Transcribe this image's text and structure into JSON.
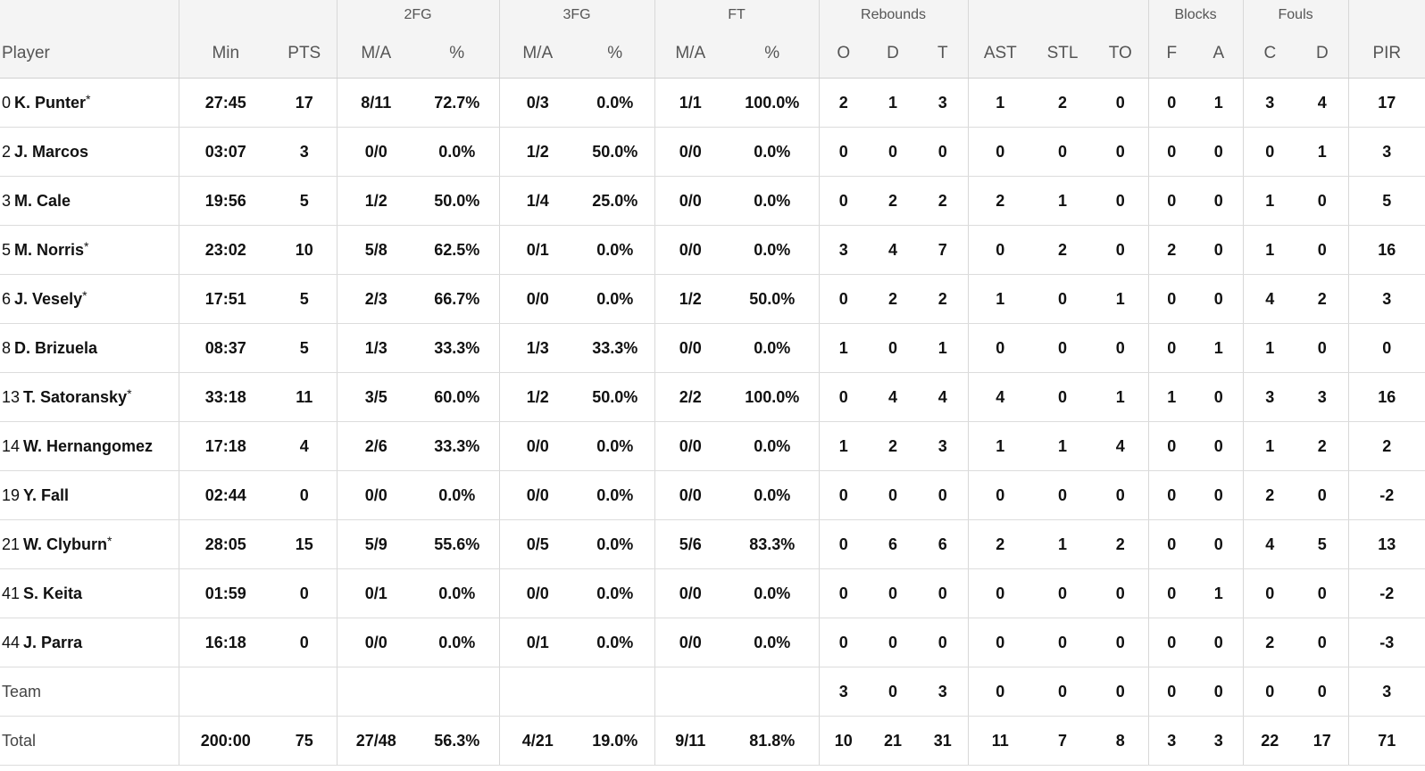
{
  "groups": {
    "fg2": "2FG",
    "fg3": "3FG",
    "ft": "FT",
    "rebounds": "Rebounds",
    "blocks": "Blocks",
    "fouls": "Fouls"
  },
  "headers": {
    "player": "Player",
    "min": "Min",
    "pts": "PTS",
    "fg2_ma": "M/A",
    "fg2_pct": "%",
    "fg3_ma": "M/A",
    "fg3_pct": "%",
    "ft_ma": "M/A",
    "ft_pct": "%",
    "reb_o": "O",
    "reb_d": "D",
    "reb_t": "T",
    "ast": "AST",
    "stl": "STL",
    "to": "TO",
    "blk_f": "F",
    "blk_a": "A",
    "foul_c": "C",
    "foul_d": "D",
    "pir": "PIR"
  },
  "players": [
    {
      "num": "0",
      "name": "K. Punter",
      "star": "*",
      "min": "27:45",
      "pts": "17",
      "fg2_ma": "8/11",
      "fg2_pct": "72.7%",
      "fg3_ma": "0/3",
      "fg3_pct": "0.0%",
      "ft_ma": "1/1",
      "ft_pct": "100.0%",
      "reb_o": "2",
      "reb_d": "1",
      "reb_t": "3",
      "ast": "1",
      "stl": "2",
      "to": "0",
      "blk_f": "0",
      "blk_a": "1",
      "foul_c": "3",
      "foul_d": "4",
      "pir": "17"
    },
    {
      "num": "2",
      "name": "J. Marcos",
      "star": "",
      "min": "03:07",
      "pts": "3",
      "fg2_ma": "0/0",
      "fg2_pct": "0.0%",
      "fg3_ma": "1/2",
      "fg3_pct": "50.0%",
      "ft_ma": "0/0",
      "ft_pct": "0.0%",
      "reb_o": "0",
      "reb_d": "0",
      "reb_t": "0",
      "ast": "0",
      "stl": "0",
      "to": "0",
      "blk_f": "0",
      "blk_a": "0",
      "foul_c": "0",
      "foul_d": "1",
      "pir": "3"
    },
    {
      "num": "3",
      "name": "M. Cale",
      "star": "",
      "min": "19:56",
      "pts": "5",
      "fg2_ma": "1/2",
      "fg2_pct": "50.0%",
      "fg3_ma": "1/4",
      "fg3_pct": "25.0%",
      "ft_ma": "0/0",
      "ft_pct": "0.0%",
      "reb_o": "0",
      "reb_d": "2",
      "reb_t": "2",
      "ast": "2",
      "stl": "1",
      "to": "0",
      "blk_f": "0",
      "blk_a": "0",
      "foul_c": "1",
      "foul_d": "0",
      "pir": "5"
    },
    {
      "num": "5",
      "name": "M. Norris",
      "star": "*",
      "min": "23:02",
      "pts": "10",
      "fg2_ma": "5/8",
      "fg2_pct": "62.5%",
      "fg3_ma": "0/1",
      "fg3_pct": "0.0%",
      "ft_ma": "0/0",
      "ft_pct": "0.0%",
      "reb_o": "3",
      "reb_d": "4",
      "reb_t": "7",
      "ast": "0",
      "stl": "2",
      "to": "0",
      "blk_f": "2",
      "blk_a": "0",
      "foul_c": "1",
      "foul_d": "0",
      "pir": "16"
    },
    {
      "num": "6",
      "name": "J. Vesely",
      "star": "*",
      "min": "17:51",
      "pts": "5",
      "fg2_ma": "2/3",
      "fg2_pct": "66.7%",
      "fg3_ma": "0/0",
      "fg3_pct": "0.0%",
      "ft_ma": "1/2",
      "ft_pct": "50.0%",
      "reb_o": "0",
      "reb_d": "2",
      "reb_t": "2",
      "ast": "1",
      "stl": "0",
      "to": "1",
      "blk_f": "0",
      "blk_a": "0",
      "foul_c": "4",
      "foul_d": "2",
      "pir": "3"
    },
    {
      "num": "8",
      "name": "D. Brizuela",
      "star": "",
      "min": "08:37",
      "pts": "5",
      "fg2_ma": "1/3",
      "fg2_pct": "33.3%",
      "fg3_ma": "1/3",
      "fg3_pct": "33.3%",
      "ft_ma": "0/0",
      "ft_pct": "0.0%",
      "reb_o": "1",
      "reb_d": "0",
      "reb_t": "1",
      "ast": "0",
      "stl": "0",
      "to": "0",
      "blk_f": "0",
      "blk_a": "1",
      "foul_c": "1",
      "foul_d": "0",
      "pir": "0"
    },
    {
      "num": "13",
      "name": "T. Satoransky",
      "star": "*",
      "min": "33:18",
      "pts": "11",
      "fg2_ma": "3/5",
      "fg2_pct": "60.0%",
      "fg3_ma": "1/2",
      "fg3_pct": "50.0%",
      "ft_ma": "2/2",
      "ft_pct": "100.0%",
      "reb_o": "0",
      "reb_d": "4",
      "reb_t": "4",
      "ast": "4",
      "stl": "0",
      "to": "1",
      "blk_f": "1",
      "blk_a": "0",
      "foul_c": "3",
      "foul_d": "3",
      "pir": "16"
    },
    {
      "num": "14",
      "name": "W. Hernangomez",
      "star": "",
      "min": "17:18",
      "pts": "4",
      "fg2_ma": "2/6",
      "fg2_pct": "33.3%",
      "fg3_ma": "0/0",
      "fg3_pct": "0.0%",
      "ft_ma": "0/0",
      "ft_pct": "0.0%",
      "reb_o": "1",
      "reb_d": "2",
      "reb_t": "3",
      "ast": "1",
      "stl": "1",
      "to": "4",
      "blk_f": "0",
      "blk_a": "0",
      "foul_c": "1",
      "foul_d": "2",
      "pir": "2"
    },
    {
      "num": "19",
      "name": "Y. Fall",
      "star": "",
      "min": "02:44",
      "pts": "0",
      "fg2_ma": "0/0",
      "fg2_pct": "0.0%",
      "fg3_ma": "0/0",
      "fg3_pct": "0.0%",
      "ft_ma": "0/0",
      "ft_pct": "0.0%",
      "reb_o": "0",
      "reb_d": "0",
      "reb_t": "0",
      "ast": "0",
      "stl": "0",
      "to": "0",
      "blk_f": "0",
      "blk_a": "0",
      "foul_c": "2",
      "foul_d": "0",
      "pir": "-2"
    },
    {
      "num": "21",
      "name": "W. Clyburn",
      "star": "*",
      "min": "28:05",
      "pts": "15",
      "fg2_ma": "5/9",
      "fg2_pct": "55.6%",
      "fg3_ma": "0/5",
      "fg3_pct": "0.0%",
      "ft_ma": "5/6",
      "ft_pct": "83.3%",
      "reb_o": "0",
      "reb_d": "6",
      "reb_t": "6",
      "ast": "2",
      "stl": "1",
      "to": "2",
      "blk_f": "0",
      "blk_a": "0",
      "foul_c": "4",
      "foul_d": "5",
      "pir": "13"
    },
    {
      "num": "41",
      "name": "S. Keita",
      "star": "",
      "min": "01:59",
      "pts": "0",
      "fg2_ma": "0/1",
      "fg2_pct": "0.0%",
      "fg3_ma": "0/0",
      "fg3_pct": "0.0%",
      "ft_ma": "0/0",
      "ft_pct": "0.0%",
      "reb_o": "0",
      "reb_d": "0",
      "reb_t": "0",
      "ast": "0",
      "stl": "0",
      "to": "0",
      "blk_f": "0",
      "blk_a": "1",
      "foul_c": "0",
      "foul_d": "0",
      "pir": "-2"
    },
    {
      "num": "44",
      "name": "J. Parra",
      "star": "",
      "min": "16:18",
      "pts": "0",
      "fg2_ma": "0/0",
      "fg2_pct": "0.0%",
      "fg3_ma": "0/1",
      "fg3_pct": "0.0%",
      "ft_ma": "0/0",
      "ft_pct": "0.0%",
      "reb_o": "0",
      "reb_d": "0",
      "reb_t": "0",
      "ast": "0",
      "stl": "0",
      "to": "0",
      "blk_f": "0",
      "blk_a": "0",
      "foul_c": "2",
      "foul_d": "0",
      "pir": "-3"
    }
  ],
  "team": {
    "label": "Team",
    "min": "",
    "pts": "",
    "fg2_ma": "",
    "fg2_pct": "",
    "fg3_ma": "",
    "fg3_pct": "",
    "ft_ma": "",
    "ft_pct": "",
    "reb_o": "3",
    "reb_d": "0",
    "reb_t": "3",
    "ast": "0",
    "stl": "0",
    "to": "0",
    "blk_f": "0",
    "blk_a": "0",
    "foul_c": "0",
    "foul_d": "0",
    "pir": "3"
  },
  "total": {
    "label": "Total",
    "min": "200:00",
    "pts": "75",
    "fg2_ma": "27/48",
    "fg2_pct": "56.3%",
    "fg3_ma": "4/21",
    "fg3_pct": "19.0%",
    "ft_ma": "9/11",
    "ft_pct": "81.8%",
    "reb_o": "10",
    "reb_d": "21",
    "reb_t": "31",
    "ast": "11",
    "stl": "7",
    "to": "8",
    "blk_f": "3",
    "blk_a": "3",
    "foul_c": "22",
    "foul_d": "17",
    "pir": "71"
  }
}
